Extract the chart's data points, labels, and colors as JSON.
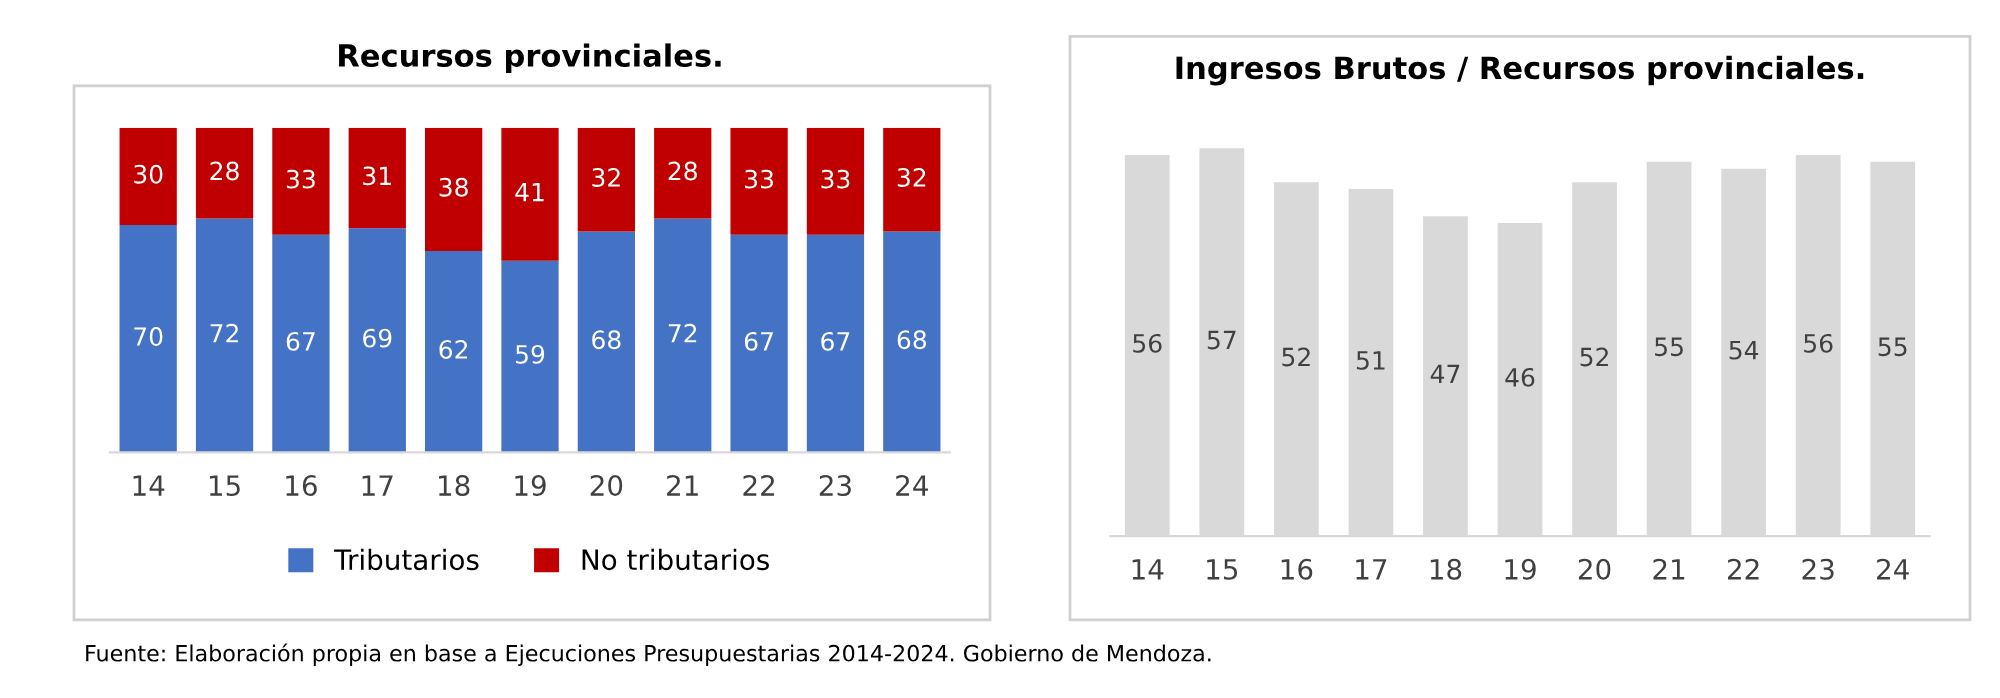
{
  "chart_data": [
    {
      "type": "bar",
      "title": "Recursos provinciales.",
      "stacked": true,
      "categories": [
        "14",
        "15",
        "16",
        "17",
        "18",
        "19",
        "20",
        "21",
        "22",
        "23",
        "24"
      ],
      "series": [
        {
          "name": "Tributarios",
          "color": "#4472c4",
          "values": [
            70,
            72,
            67,
            69,
            62,
            59,
            68,
            72,
            67,
            67,
            68
          ]
        },
        {
          "name": "No tributarios",
          "color": "#c00000",
          "values": [
            30,
            28,
            33,
            31,
            38,
            41,
            32,
            28,
            33,
            33,
            32
          ]
        }
      ],
      "data_labels": true,
      "legend": "bottom",
      "grid": false,
      "tick_labels": "x",
      "annotations": [
        "Fuente: Elaboración propia en base a Ejecuciones Presupuestarias 2014-2024. Gobierno de Mendoza."
      ]
    },
    {
      "type": "bar",
      "title": "Ingresos Brutos / Recursos provinciales.",
      "categories": [
        "14",
        "15",
        "16",
        "17",
        "18",
        "19",
        "20",
        "21",
        "22",
        "23",
        "24"
      ],
      "series": [
        {
          "color": "#d9d9d9",
          "values": [
            56,
            57,
            52,
            51,
            47,
            46,
            52,
            55,
            54,
            56,
            55
          ]
        }
      ],
      "data_labels": true,
      "legend": false,
      "grid": false,
      "tick_labels": "x"
    }
  ]
}
